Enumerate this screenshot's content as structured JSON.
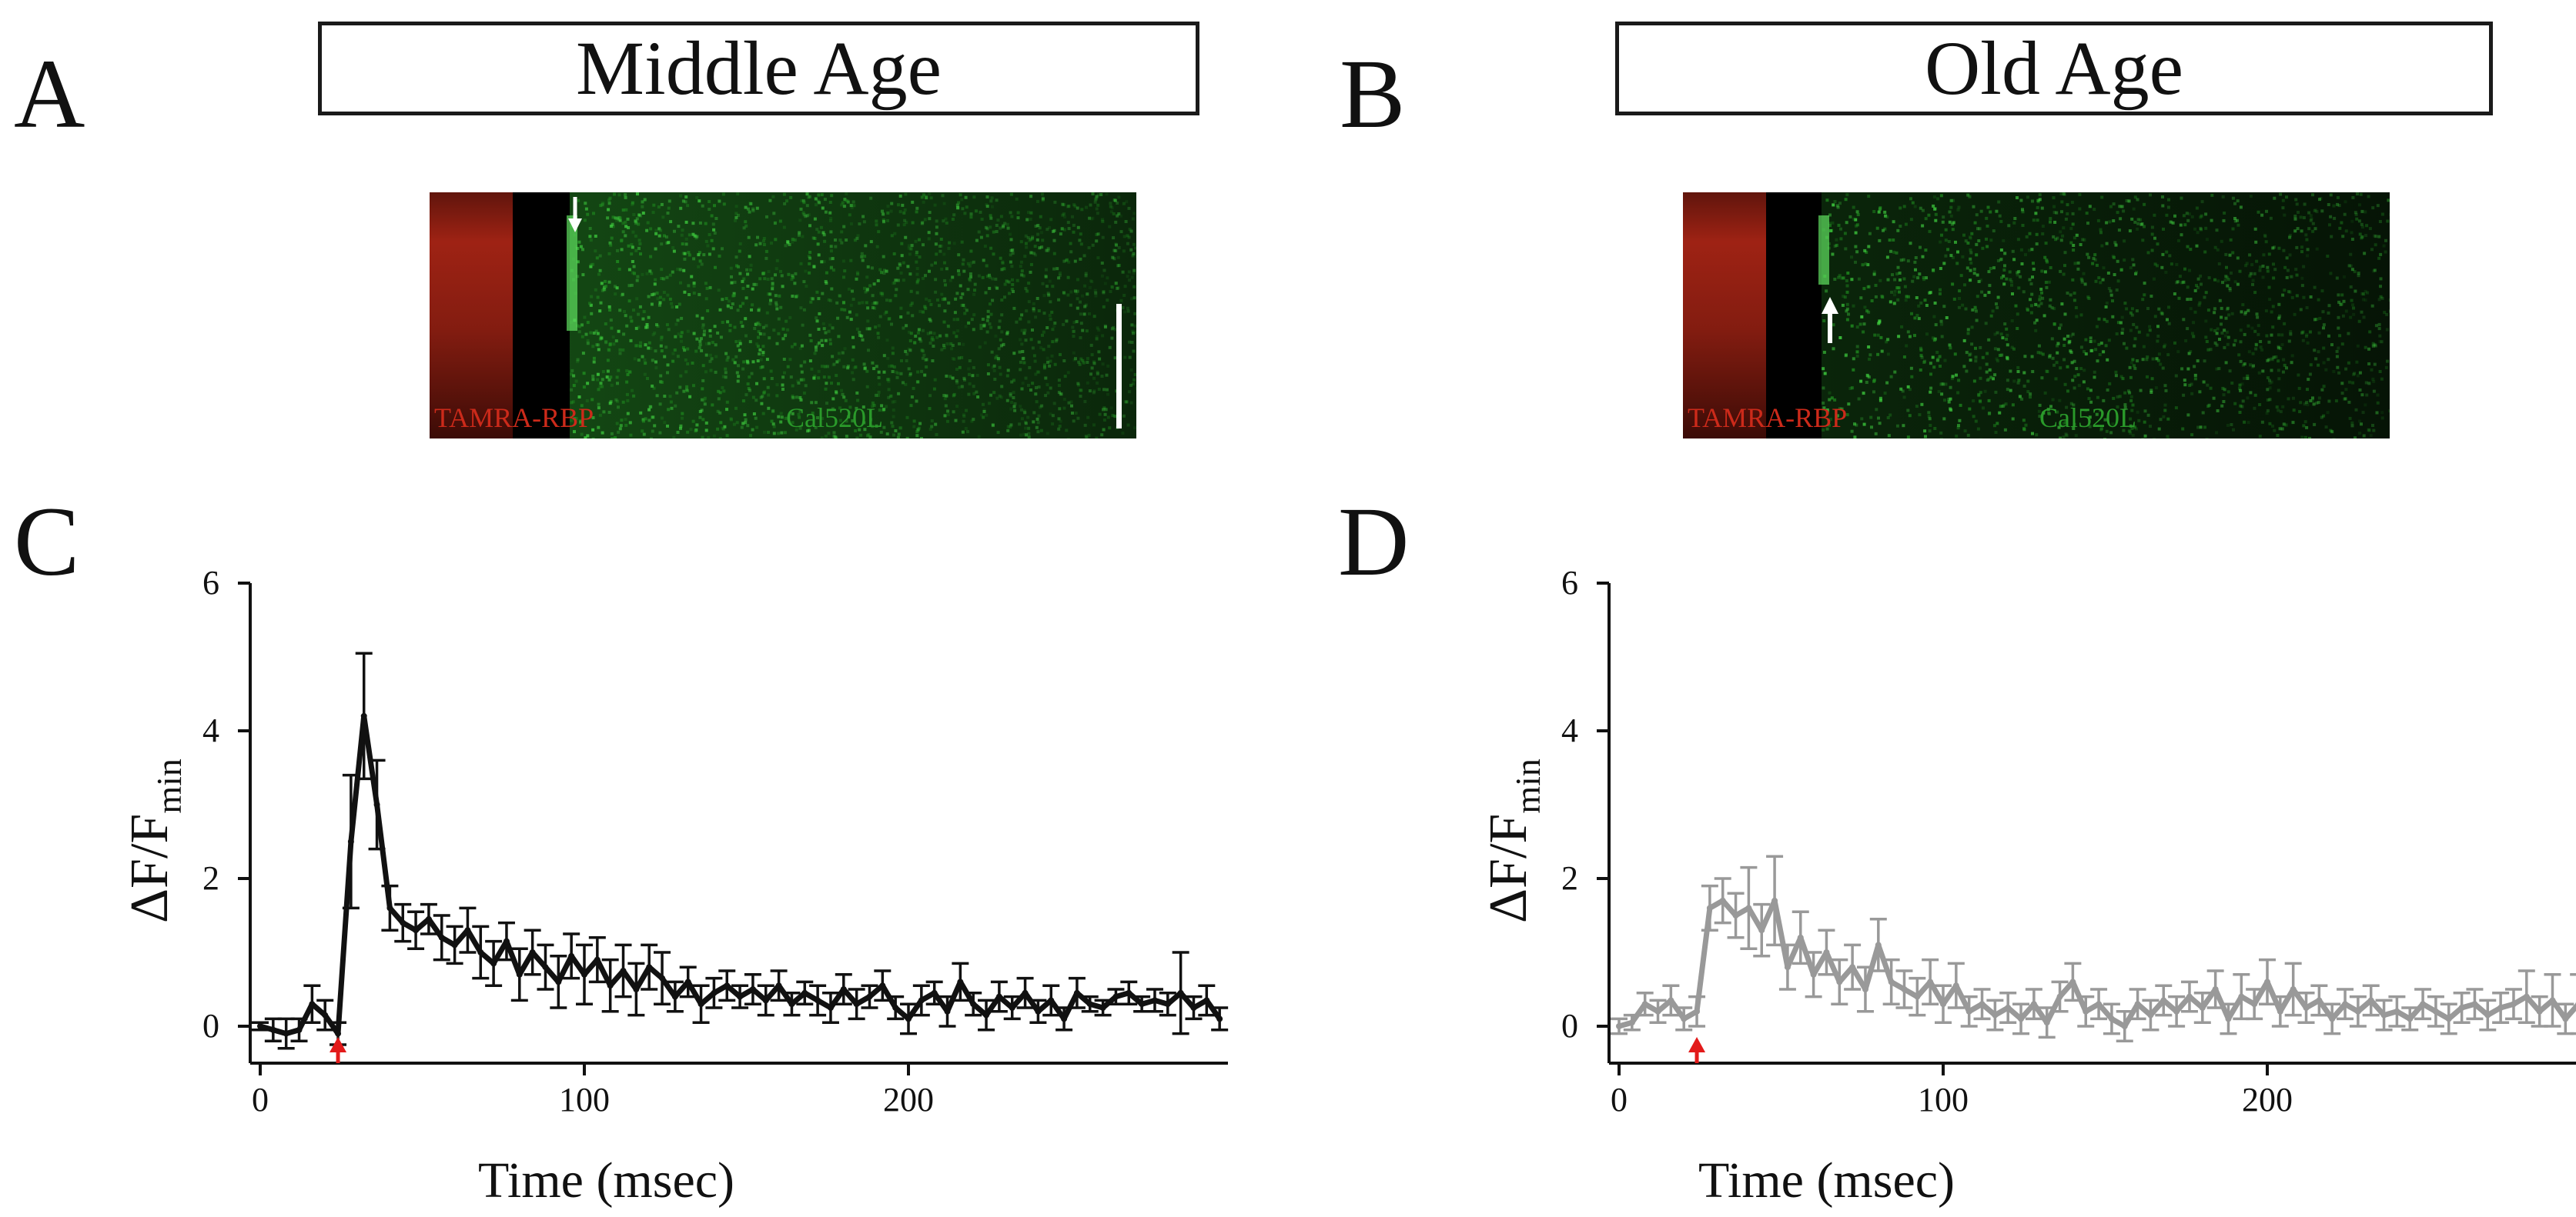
{
  "panels": {
    "A": {
      "letter": "A",
      "title": "Middle Age",
      "label_red": "TAMRA-RBP",
      "label_green": "Cal520L"
    },
    "B": {
      "letter": "B",
      "title": "Old Age",
      "label_red": "TAMRA-RBP",
      "label_green": "Cal520L"
    },
    "C": {
      "letter": "C"
    },
    "D": {
      "letter": "D"
    }
  },
  "colors": {
    "red_stain": "#b02616",
    "green_stain": "#2ea82e",
    "series_C": "#111111",
    "series_D": "#999999",
    "stim_arrow": "#e31a1a"
  },
  "icons": {
    "scan_arrow": "white-arrow-icon",
    "stim_arrow": "red-arrow-icon"
  },
  "chart_data": [
    {
      "panel": "C",
      "type": "line",
      "title": "",
      "xlabel": "Time (msec)",
      "ylabel": "ΔF/Fmin",
      "ylabel_main": "ΔF/F",
      "ylabel_sub": "min",
      "xlim": [
        -5,
        298
      ],
      "ylim": [
        -0.5,
        6
      ],
      "xticks": [
        0,
        100,
        200
      ],
      "yticks": [
        0,
        2,
        4,
        6
      ],
      "grid": false,
      "stimulus_time": 24,
      "series": [
        {
          "name": "Middle Age",
          "x": [
            0,
            4,
            8,
            12,
            16,
            20,
            24,
            28,
            32,
            36,
            40,
            44,
            48,
            52,
            56,
            60,
            64,
            68,
            72,
            76,
            80,
            84,
            88,
            92,
            96,
            100,
            104,
            108,
            112,
            116,
            120,
            124,
            128,
            132,
            136,
            140,
            144,
            148,
            152,
            156,
            160,
            164,
            168,
            172,
            176,
            180,
            184,
            188,
            192,
            196,
            200,
            204,
            208,
            212,
            216,
            220,
            224,
            228,
            232,
            236,
            240,
            244,
            248,
            252,
            256,
            260,
            264,
            268,
            272,
            276,
            280,
            284,
            288,
            292,
            296
          ],
          "y": [
            0.0,
            -0.05,
            -0.1,
            -0.05,
            0.3,
            0.15,
            -0.1,
            2.5,
            4.2,
            3.0,
            1.6,
            1.4,
            1.3,
            1.45,
            1.2,
            1.1,
            1.3,
            1.0,
            0.85,
            1.15,
            0.7,
            1.0,
            0.8,
            0.6,
            0.95,
            0.7,
            0.9,
            0.55,
            0.75,
            0.5,
            0.8,
            0.65,
            0.4,
            0.6,
            0.3,
            0.45,
            0.55,
            0.4,
            0.5,
            0.35,
            0.55,
            0.3,
            0.45,
            0.35,
            0.25,
            0.5,
            0.3,
            0.4,
            0.55,
            0.25,
            0.1,
            0.35,
            0.45,
            0.2,
            0.6,
            0.3,
            0.15,
            0.4,
            0.25,
            0.45,
            0.2,
            0.35,
            0.1,
            0.45,
            0.3,
            0.25,
            0.4,
            0.45,
            0.3,
            0.35,
            0.3,
            0.45,
            0.25,
            0.35,
            0.1
          ],
          "err": [
            0.05,
            0.15,
            0.2,
            0.15,
            0.25,
            0.2,
            0.15,
            0.9,
            0.85,
            0.6,
            0.3,
            0.25,
            0.25,
            0.2,
            0.3,
            0.25,
            0.3,
            0.35,
            0.3,
            0.25,
            0.35,
            0.3,
            0.3,
            0.35,
            0.3,
            0.4,
            0.3,
            0.35,
            0.35,
            0.35,
            0.3,
            0.35,
            0.2,
            0.2,
            0.25,
            0.2,
            0.2,
            0.15,
            0.2,
            0.2,
            0.2,
            0.15,
            0.15,
            0.2,
            0.2,
            0.2,
            0.2,
            0.15,
            0.2,
            0.15,
            0.2,
            0.2,
            0.15,
            0.2,
            0.25,
            0.15,
            0.2,
            0.2,
            0.15,
            0.2,
            0.15,
            0.2,
            0.15,
            0.2,
            0.1,
            0.1,
            0.1,
            0.15,
            0.1,
            0.15,
            0.15,
            0.55,
            0.15,
            0.2,
            0.15
          ]
        }
      ]
    },
    {
      "panel": "D",
      "type": "line",
      "title": "",
      "xlabel": "Time (msec)",
      "ylabel": "ΔF/Fmin",
      "ylabel_main": "ΔF/F",
      "ylabel_sub": "min",
      "xlim": [
        -5,
        298
      ],
      "ylim": [
        -0.5,
        6
      ],
      "xticks": [
        0,
        100,
        200
      ],
      "yticks": [
        0,
        2,
        4,
        6
      ],
      "grid": false,
      "stimulus_time": 24,
      "series": [
        {
          "name": "Old Age",
          "x": [
            0,
            4,
            8,
            12,
            16,
            20,
            24,
            28,
            32,
            36,
            40,
            44,
            48,
            52,
            56,
            60,
            64,
            68,
            72,
            76,
            80,
            84,
            88,
            92,
            96,
            100,
            104,
            108,
            112,
            116,
            120,
            124,
            128,
            132,
            136,
            140,
            144,
            148,
            152,
            156,
            160,
            164,
            168,
            172,
            176,
            180,
            184,
            188,
            192,
            196,
            200,
            204,
            208,
            212,
            216,
            220,
            224,
            228,
            232,
            236,
            240,
            244,
            248,
            252,
            256,
            260,
            264,
            268,
            272,
            276,
            280,
            284,
            288,
            292,
            296
          ],
          "y": [
            0.0,
            0.05,
            0.3,
            0.2,
            0.35,
            0.1,
            0.2,
            1.6,
            1.7,
            1.5,
            1.6,
            1.3,
            1.7,
            0.8,
            1.2,
            0.7,
            1.0,
            0.6,
            0.8,
            0.5,
            1.1,
            0.6,
            0.5,
            0.4,
            0.6,
            0.3,
            0.55,
            0.2,
            0.3,
            0.15,
            0.25,
            0.1,
            0.3,
            0.05,
            0.4,
            0.6,
            0.2,
            0.3,
            0.1,
            0.0,
            0.3,
            0.15,
            0.35,
            0.2,
            0.4,
            0.25,
            0.5,
            0.1,
            0.4,
            0.3,
            0.6,
            0.2,
            0.5,
            0.25,
            0.35,
            0.1,
            0.3,
            0.2,
            0.35,
            0.15,
            0.2,
            0.1,
            0.3,
            0.2,
            0.1,
            0.25,
            0.3,
            0.15,
            0.25,
            0.3,
            0.4,
            0.2,
            0.35,
            0.1,
            0.3
          ],
          "err": [
            0.1,
            0.1,
            0.15,
            0.15,
            0.2,
            0.15,
            0.2,
            0.3,
            0.3,
            0.3,
            0.55,
            0.35,
            0.6,
            0.3,
            0.35,
            0.3,
            0.3,
            0.3,
            0.3,
            0.3,
            0.35,
            0.3,
            0.25,
            0.25,
            0.3,
            0.25,
            0.3,
            0.2,
            0.2,
            0.2,
            0.2,
            0.2,
            0.2,
            0.2,
            0.2,
            0.25,
            0.2,
            0.2,
            0.2,
            0.2,
            0.2,
            0.2,
            0.2,
            0.2,
            0.2,
            0.2,
            0.25,
            0.2,
            0.3,
            0.2,
            0.3,
            0.2,
            0.35,
            0.2,
            0.2,
            0.2,
            0.2,
            0.2,
            0.2,
            0.2,
            0.2,
            0.15,
            0.2,
            0.2,
            0.2,
            0.2,
            0.2,
            0.2,
            0.2,
            0.2,
            0.35,
            0.2,
            0.35,
            0.2,
            0.4
          ]
        }
      ]
    }
  ]
}
